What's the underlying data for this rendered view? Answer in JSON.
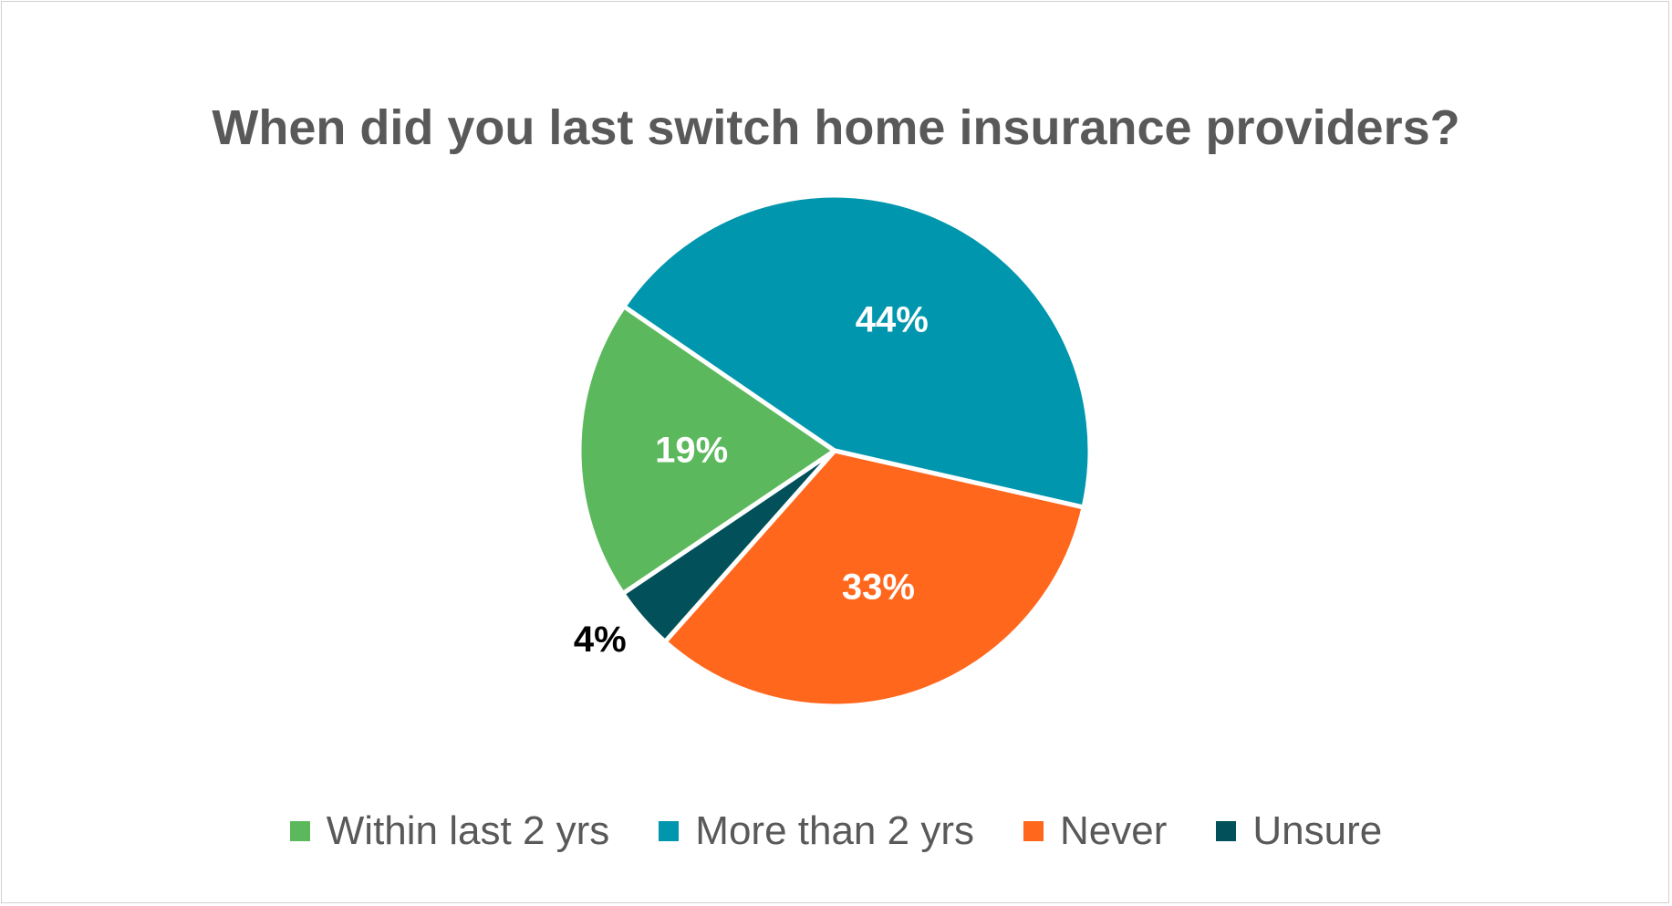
{
  "chart_data": {
    "type": "pie",
    "title": "When did you last switch home insurance providers?",
    "categories": [
      "Within last 2 yrs",
      "More than 2 yrs",
      "Never",
      "Unsure"
    ],
    "values": [
      19,
      44,
      33,
      4
    ],
    "data_labels": [
      "19%",
      "44%",
      "33%",
      "4%"
    ],
    "colors": [
      "#5cb85c",
      "#0096ad",
      "#ff671d",
      "#01505a"
    ],
    "label_colors": [
      "#ffffff",
      "#ffffff",
      "#ffffff",
      "#000000"
    ],
    "legend_position": "bottom"
  }
}
